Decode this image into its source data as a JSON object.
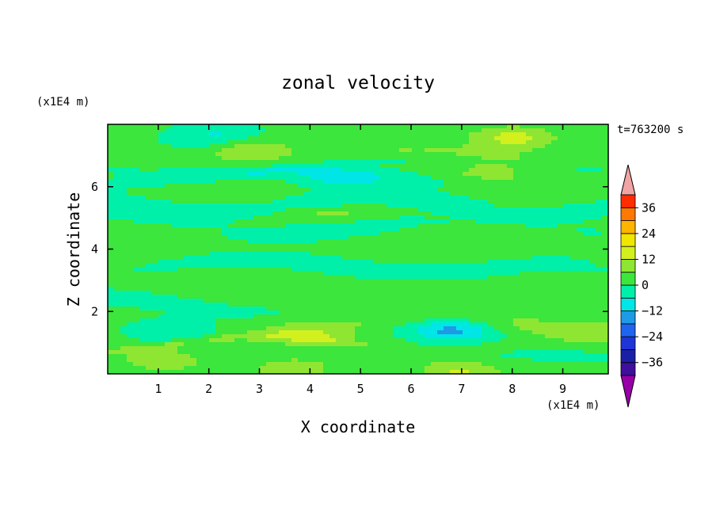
{
  "chart_data": {
    "type": "heatmap",
    "title": "zonal velocity",
    "xlabel": "X coordinate",
    "ylabel": "Z coordinate",
    "x_unit": "(x1E4 m)",
    "y_unit": "(x1E4 m)",
    "time_label": "t=763200 s",
    "xlim": [
      0,
      9.9
    ],
    "ylim": [
      0,
      8
    ],
    "x_ticks": [
      "1",
      "2",
      "3",
      "4",
      "5",
      "6",
      "7",
      "8",
      "9"
    ],
    "y_ticks": [
      "2",
      "4",
      "6"
    ],
    "colorbar": {
      "levels": [
        -42,
        -36,
        -30,
        -24,
        -18,
        -12,
        -6,
        0,
        6,
        12,
        18,
        24,
        30,
        36,
        42
      ],
      "tick_labels": [
        "36",
        "24",
        "12",
        "0",
        "−12",
        "−24",
        "−36"
      ],
      "colors": [
        "#9600a6",
        "#3f0f9e",
        "#1b1fa8",
        "#1f35d6",
        "#1e64f0",
        "#1e9ae6",
        "#00e6e6",
        "#00f0aa",
        "#3ce63c",
        "#8ee632",
        "#d2f01e",
        "#f0e600",
        "#ffb400",
        "#ff7800",
        "#ff2d00",
        "#e61414",
        "#f2a4a4"
      ],
      "under_color": "#9600a6",
      "over_color": "#f2a4a4"
    },
    "features": [
      {
        "x": 1.3,
        "z": 1.4,
        "value": -8
      },
      {
        "x": 4.0,
        "z": 1.25,
        "value": 10
      },
      {
        "x": 6.8,
        "z": 1.4,
        "value": -16
      },
      {
        "x": 9.4,
        "z": 1.3,
        "value": 5
      },
      {
        "x": 2.8,
        "z": 7.2,
        "value": 12
      },
      {
        "x": 8.0,
        "z": 7.55,
        "value": 13
      },
      {
        "x": 2.2,
        "z": 7.55,
        "value": -10
      },
      {
        "x": 7.6,
        "z": 6.6,
        "value": 8
      },
      {
        "x": 4.6,
        "z": 6.35,
        "value": -7
      },
      {
        "x": 3.7,
        "z": 0.15,
        "value": 10
      },
      {
        "x": 6.9,
        "z": 0.12,
        "value": 12
      },
      {
        "x": 1.1,
        "z": 0.45,
        "value": 9
      }
    ]
  }
}
